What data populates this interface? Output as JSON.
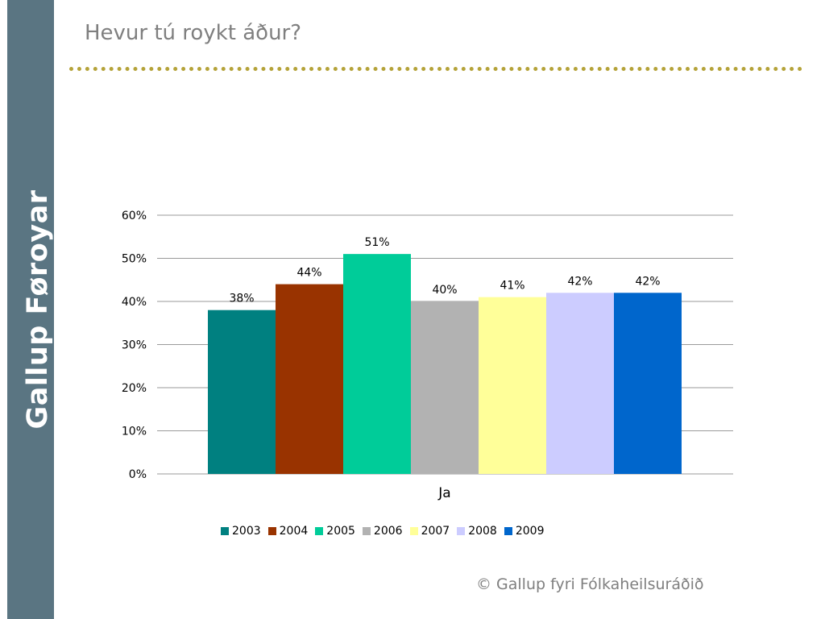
{
  "sidebar": {
    "brand": "Gallup Føroyar"
  },
  "header": {
    "title": "Hevur tú roykt áður?"
  },
  "footer": {
    "copyright": "© Gallup fyri Fólkaheilsuráðið"
  },
  "chart_data": {
    "type": "bar",
    "categories": [
      "Ja"
    ],
    "series": [
      {
        "name": "2003",
        "values": [
          38
        ],
        "color": "#008080",
        "label": "38%"
      },
      {
        "name": "2004",
        "values": [
          44
        ],
        "color": "#993300",
        "label": "44%"
      },
      {
        "name": "2005",
        "values": [
          51
        ],
        "color": "#00cc99",
        "label": "51%"
      },
      {
        "name": "2006",
        "values": [
          40
        ],
        "color": "#b2b2b2",
        "label": "40%"
      },
      {
        "name": "2007",
        "values": [
          41
        ],
        "color": "#ffff99",
        "label": "41%"
      },
      {
        "name": "2008",
        "values": [
          42
        ],
        "color": "#ccccff",
        "label": "42%"
      },
      {
        "name": "2009",
        "values": [
          42
        ],
        "color": "#0066cc",
        "label": "42%"
      }
    ],
    "yticks": [
      "0%",
      "10%",
      "20%",
      "30%",
      "40%",
      "50%",
      "60%"
    ],
    "ylim": [
      0,
      60
    ],
    "grid": true,
    "legend_position": "bottom"
  }
}
